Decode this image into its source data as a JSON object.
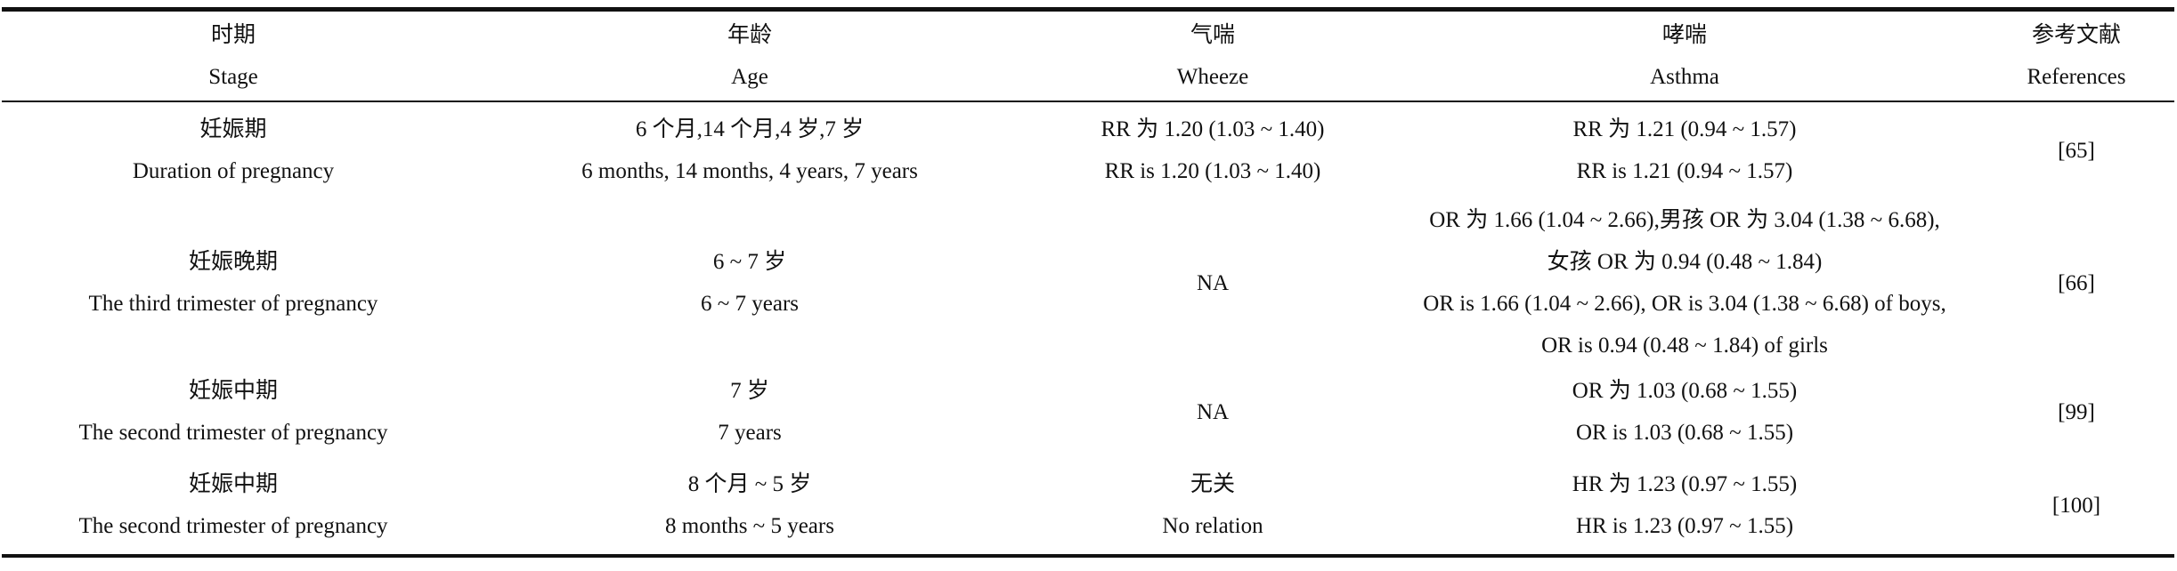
{
  "header": {
    "stage_zh": "时期",
    "stage_en": "Stage",
    "age_zh": "年龄",
    "age_en": "Age",
    "wheeze_zh": "气喘",
    "wheeze_en": "Wheeze",
    "asthma_zh": "哮喘",
    "asthma_en": "Asthma",
    "ref_zh": "参考文献",
    "ref_en": "References"
  },
  "rows": [
    {
      "stage_zh": "妊娠期",
      "stage_en": "Duration of pregnancy",
      "age_zh": "6 个月,14 个月,4 岁,7 岁",
      "age_en": "6 months, 14 months, 4 years, 7 years",
      "wheeze_zh": "RR 为 1.20 (1.03 ~ 1.40)",
      "wheeze_en": "RR is 1.20 (1.03 ~ 1.40)",
      "asthma": [
        "RR 为 1.21 (0.94 ~ 1.57)",
        "RR is 1.21 (0.94 ~ 1.57)"
      ],
      "ref": "[65]"
    },
    {
      "stage_zh": "妊娠晚期",
      "stage_en": "The third trimester of pregnancy",
      "age_zh": "6 ~ 7 岁",
      "age_en": "6 ~ 7 years",
      "wheeze": "NA",
      "asthma": [
        "OR 为 1.66 (1.04 ~ 2.66),男孩 OR 为 3.04 (1.38 ~ 6.68),",
        "女孩 OR 为 0.94 (0.48 ~ 1.84)",
        "OR is 1.66 (1.04 ~ 2.66), OR is 3.04 (1.38 ~ 6.68) of boys,",
        "OR is 0.94 (0.48 ~ 1.84) of girls"
      ],
      "ref": "[66]"
    },
    {
      "stage_zh": "妊娠中期",
      "stage_en": "The second trimester of pregnancy",
      "age_zh": "7 岁",
      "age_en": "7 years",
      "wheeze": "NA",
      "asthma": [
        "OR 为 1.03 (0.68 ~ 1.55)",
        "OR is 1.03 (0.68 ~ 1.55)"
      ],
      "ref": "[99]"
    },
    {
      "stage_zh": "妊娠中期",
      "stage_en": "The second trimester of pregnancy",
      "age_zh": "8 个月 ~ 5 岁",
      "age_en": "8 months ~ 5 years",
      "wheeze_zh": "无关",
      "wheeze_en": "No relation",
      "asthma": [
        "HR 为 1.23 (0.97 ~ 1.55)",
        "HR is 1.23 (0.97 ~ 1.55)"
      ],
      "ref": "[100]"
    }
  ]
}
